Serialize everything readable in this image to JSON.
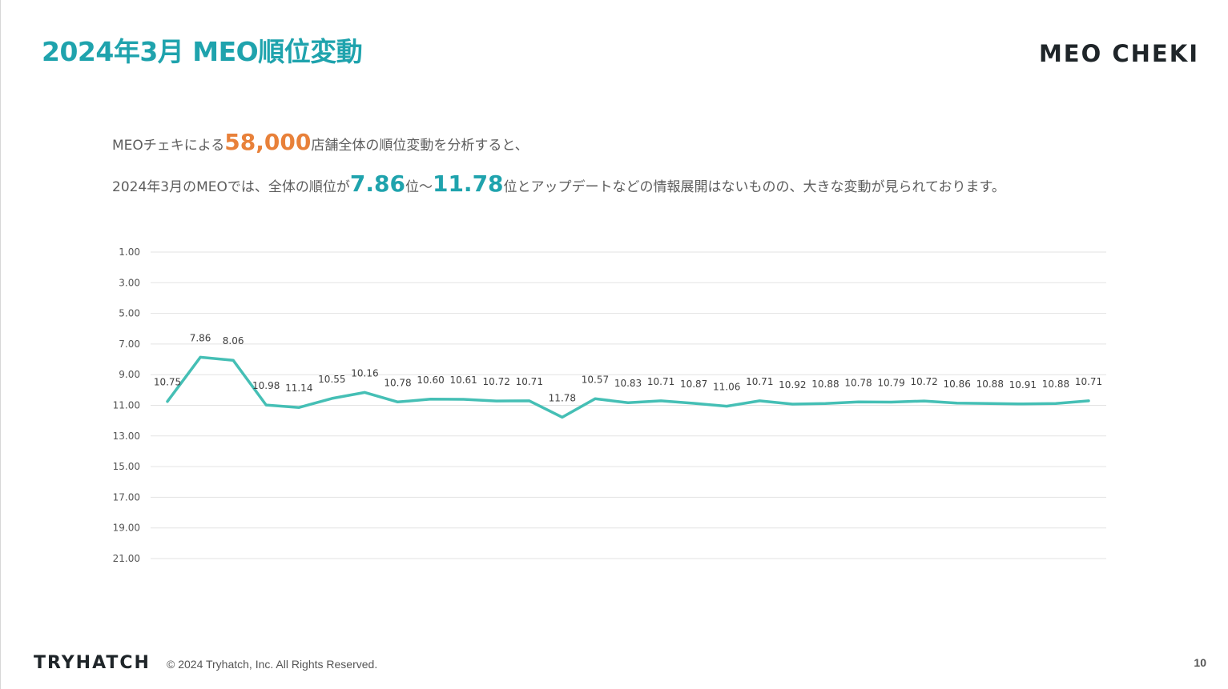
{
  "slide": {
    "title": "2024年3月 MEO順位変動",
    "brand": "MEO CHEKI",
    "page_number": "10"
  },
  "summary": {
    "line1_prefix": "MEOチェキによる",
    "line1_highlight": "58,000",
    "line1_suffix": "店舗全体の順位変動を分析すると、",
    "line2_prefix": "2024年3月のMEOでは、全体の順位が",
    "line2_min": "7.86",
    "line2_mid": "位〜",
    "line2_max": "11.78",
    "line2_suffix": "位とアップデートなどの情報展開はないものの、大きな変動が見られております。"
  },
  "footer": {
    "company_logo": "TRYHATCH",
    "copyright": "© 2024 Tryhatch, Inc. All Rights Reserved."
  },
  "colors": {
    "title": "#1fa3ad",
    "line": "#45bfb5",
    "highlight_orange": "#e8813a",
    "grid": "#e3e3e3"
  },
  "chart_data": {
    "type": "line",
    "title": "",
    "xlabel": "",
    "ylabel": "",
    "y_inverted": true,
    "ylim": [
      1,
      21
    ],
    "yticks": [
      "1.00",
      "3.00",
      "5.00",
      "7.00",
      "9.00",
      "11.00",
      "13.00",
      "15.00",
      "17.00",
      "19.00",
      "21.00"
    ],
    "grid": true,
    "legend": "none",
    "series": [
      {
        "values": [
          10.75,
          7.86,
          8.06,
          10.98,
          11.14,
          10.55,
          10.16,
          10.78,
          10.6,
          10.61,
          10.72,
          10.71,
          11.78,
          10.57,
          10.83,
          10.71,
          10.87,
          11.06,
          10.71,
          10.92,
          10.88,
          10.78,
          10.79,
          10.72,
          10.86,
          10.88,
          10.91,
          10.88,
          10.71
        ],
        "labels": [
          "10.75",
          "7.86",
          "8.06",
          "10.98",
          "11.14",
          "10.55",
          "10.16",
          "10.78",
          "10.60",
          "10.61",
          "10.72",
          "10.71",
          "11.78",
          "10.57",
          "10.83",
          "10.71",
          "10.87",
          "11.06",
          "10.71",
          "10.92",
          "10.88",
          "10.78",
          "10.79",
          "10.72",
          "10.86",
          "10.88",
          "10.91",
          "10.88",
          "10.71"
        ]
      }
    ]
  }
}
